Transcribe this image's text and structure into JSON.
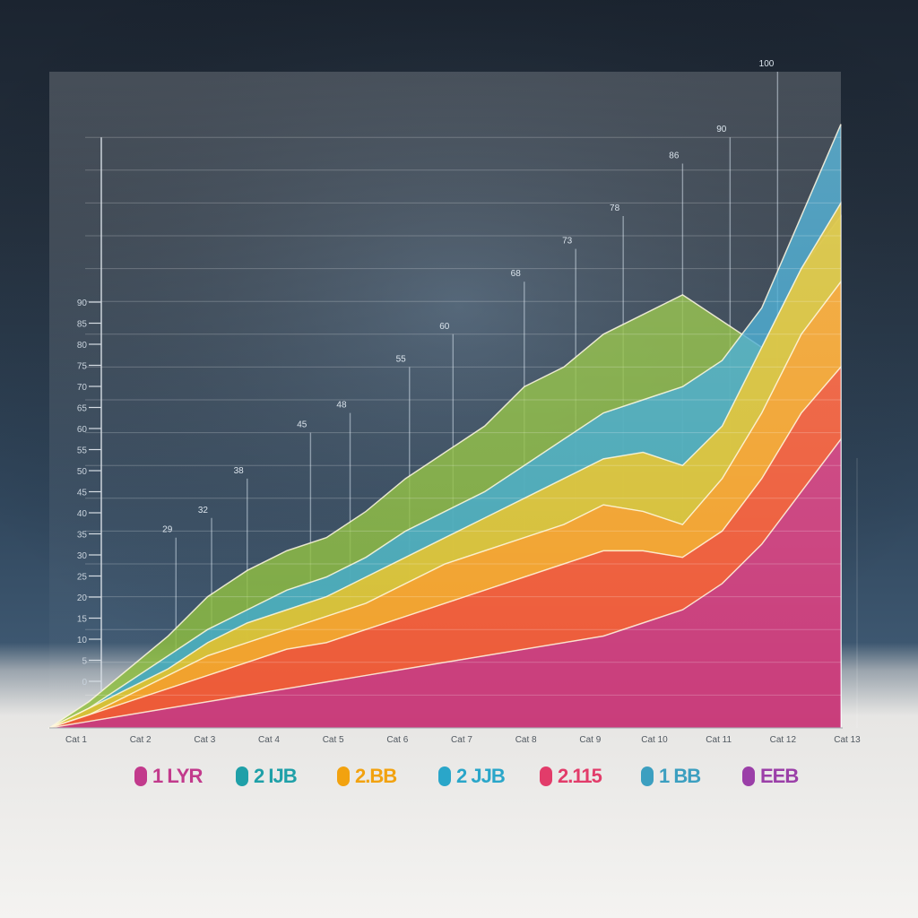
{
  "chart_data": {
    "type": "area",
    "title": "",
    "xlabel": "",
    "ylabel": "",
    "categories": [
      "Cat 1",
      "Cat 2",
      "Cat 3",
      "Cat 4",
      "Cat 5",
      "Cat 6",
      "Cat 7",
      "Cat 8",
      "Cat 9",
      "Cat 10",
      "Cat 11",
      "Cat 12",
      "Cat 13"
    ],
    "x": [
      0,
      1,
      2,
      3,
      4,
      5,
      6,
      7,
      8,
      9,
      10,
      11,
      12,
      13,
      14,
      15,
      16,
      17,
      18,
      19,
      20
    ],
    "ylim": [
      0,
      100
    ],
    "yticks": [
      0,
      5,
      10,
      15,
      20,
      25,
      30,
      35,
      40,
      45,
      50,
      55,
      60,
      65,
      70,
      75,
      80,
      85,
      90
    ],
    "grid": true,
    "legend": "none",
    "series": [
      {
        "color": "#8cbd3a",
        "values": [
          0,
          4,
          9,
          14,
          20,
          24,
          27,
          29,
          33,
          38,
          42,
          46,
          52,
          55,
          60,
          63,
          66,
          62,
          58,
          70,
          78
        ]
      },
      {
        "color": "#3aa6d0",
        "values": [
          0,
          3,
          7,
          11,
          15,
          18,
          21,
          23,
          26,
          30,
          33,
          36,
          40,
          44,
          48,
          50,
          52,
          56,
          64,
          78,
          92
        ]
      },
      {
        "color": "#f5c518",
        "values": [
          0,
          3,
          6,
          9,
          13,
          16,
          18,
          20,
          23,
          26,
          29,
          32,
          35,
          38,
          41,
          42,
          40,
          46,
          58,
          70,
          80
        ]
      },
      {
        "color": "#f79a2a",
        "values": [
          0,
          2,
          5,
          8,
          11,
          13,
          15,
          17,
          19,
          22,
          25,
          27,
          29,
          31,
          34,
          33,
          31,
          38,
          48,
          60,
          68
        ]
      },
      {
        "color": "#ec4a3a",
        "values": [
          0,
          2,
          4,
          6,
          8,
          10,
          12,
          13,
          15,
          17,
          19,
          21,
          23,
          25,
          27,
          27,
          26,
          30,
          38,
          48,
          55
        ]
      },
      {
        "color": "#c1378a",
        "values": [
          0,
          1,
          2,
          3,
          4,
          5,
          6,
          7,
          8,
          9,
          10,
          11,
          12,
          13,
          14,
          16,
          18,
          22,
          28,
          36,
          44
        ]
      }
    ],
    "bar_labels": [
      {
        "x": 3.2,
        "value": 29
      },
      {
        "x": 4.1,
        "value": 32
      },
      {
        "x": 5.0,
        "value": 38
      },
      {
        "x": 6.6,
        "value": 45
      },
      {
        "x": 7.6,
        "value": 48
      },
      {
        "x": 9.1,
        "value": 55
      },
      {
        "x": 10.2,
        "value": 60
      },
      {
        "x": 12.0,
        "value": 68
      },
      {
        "x": 13.3,
        "value": 73
      },
      {
        "x": 14.5,
        "value": 78
      },
      {
        "x": 16.0,
        "value": 86
      },
      {
        "x": 17.2,
        "value": 90
      },
      {
        "x": 18.4,
        "value": 100
      }
    ],
    "kpis": [
      {
        "accent": "#c23a8c",
        "value": "1 LYR",
        "lines": [
          "",
          "",
          ""
        ]
      },
      {
        "accent": "#1fa0a8",
        "value": "2 IJB",
        "lines": [
          "",
          "",
          ""
        ]
      },
      {
        "accent": "#f2a20f",
        "value": "2.BB",
        "lines": [
          "",
          "",
          ""
        ]
      },
      {
        "accent": "#2aa6c9",
        "value": "2 JJB",
        "lines": [
          "",
          "",
          ""
        ]
      },
      {
        "accent": "#e23c6a",
        "value": "2.115",
        "lines": [
          "",
          "",
          ""
        ]
      },
      {
        "accent": "#3c9fc0",
        "value": "1 BB",
        "lines": [
          "",
          "",
          ""
        ]
      },
      {
        "accent": "#9b3fa8",
        "value": "EEB",
        "lines": [
          "",
          "",
          ""
        ]
      }
    ],
    "footer": [
      "",
      ""
    ]
  }
}
